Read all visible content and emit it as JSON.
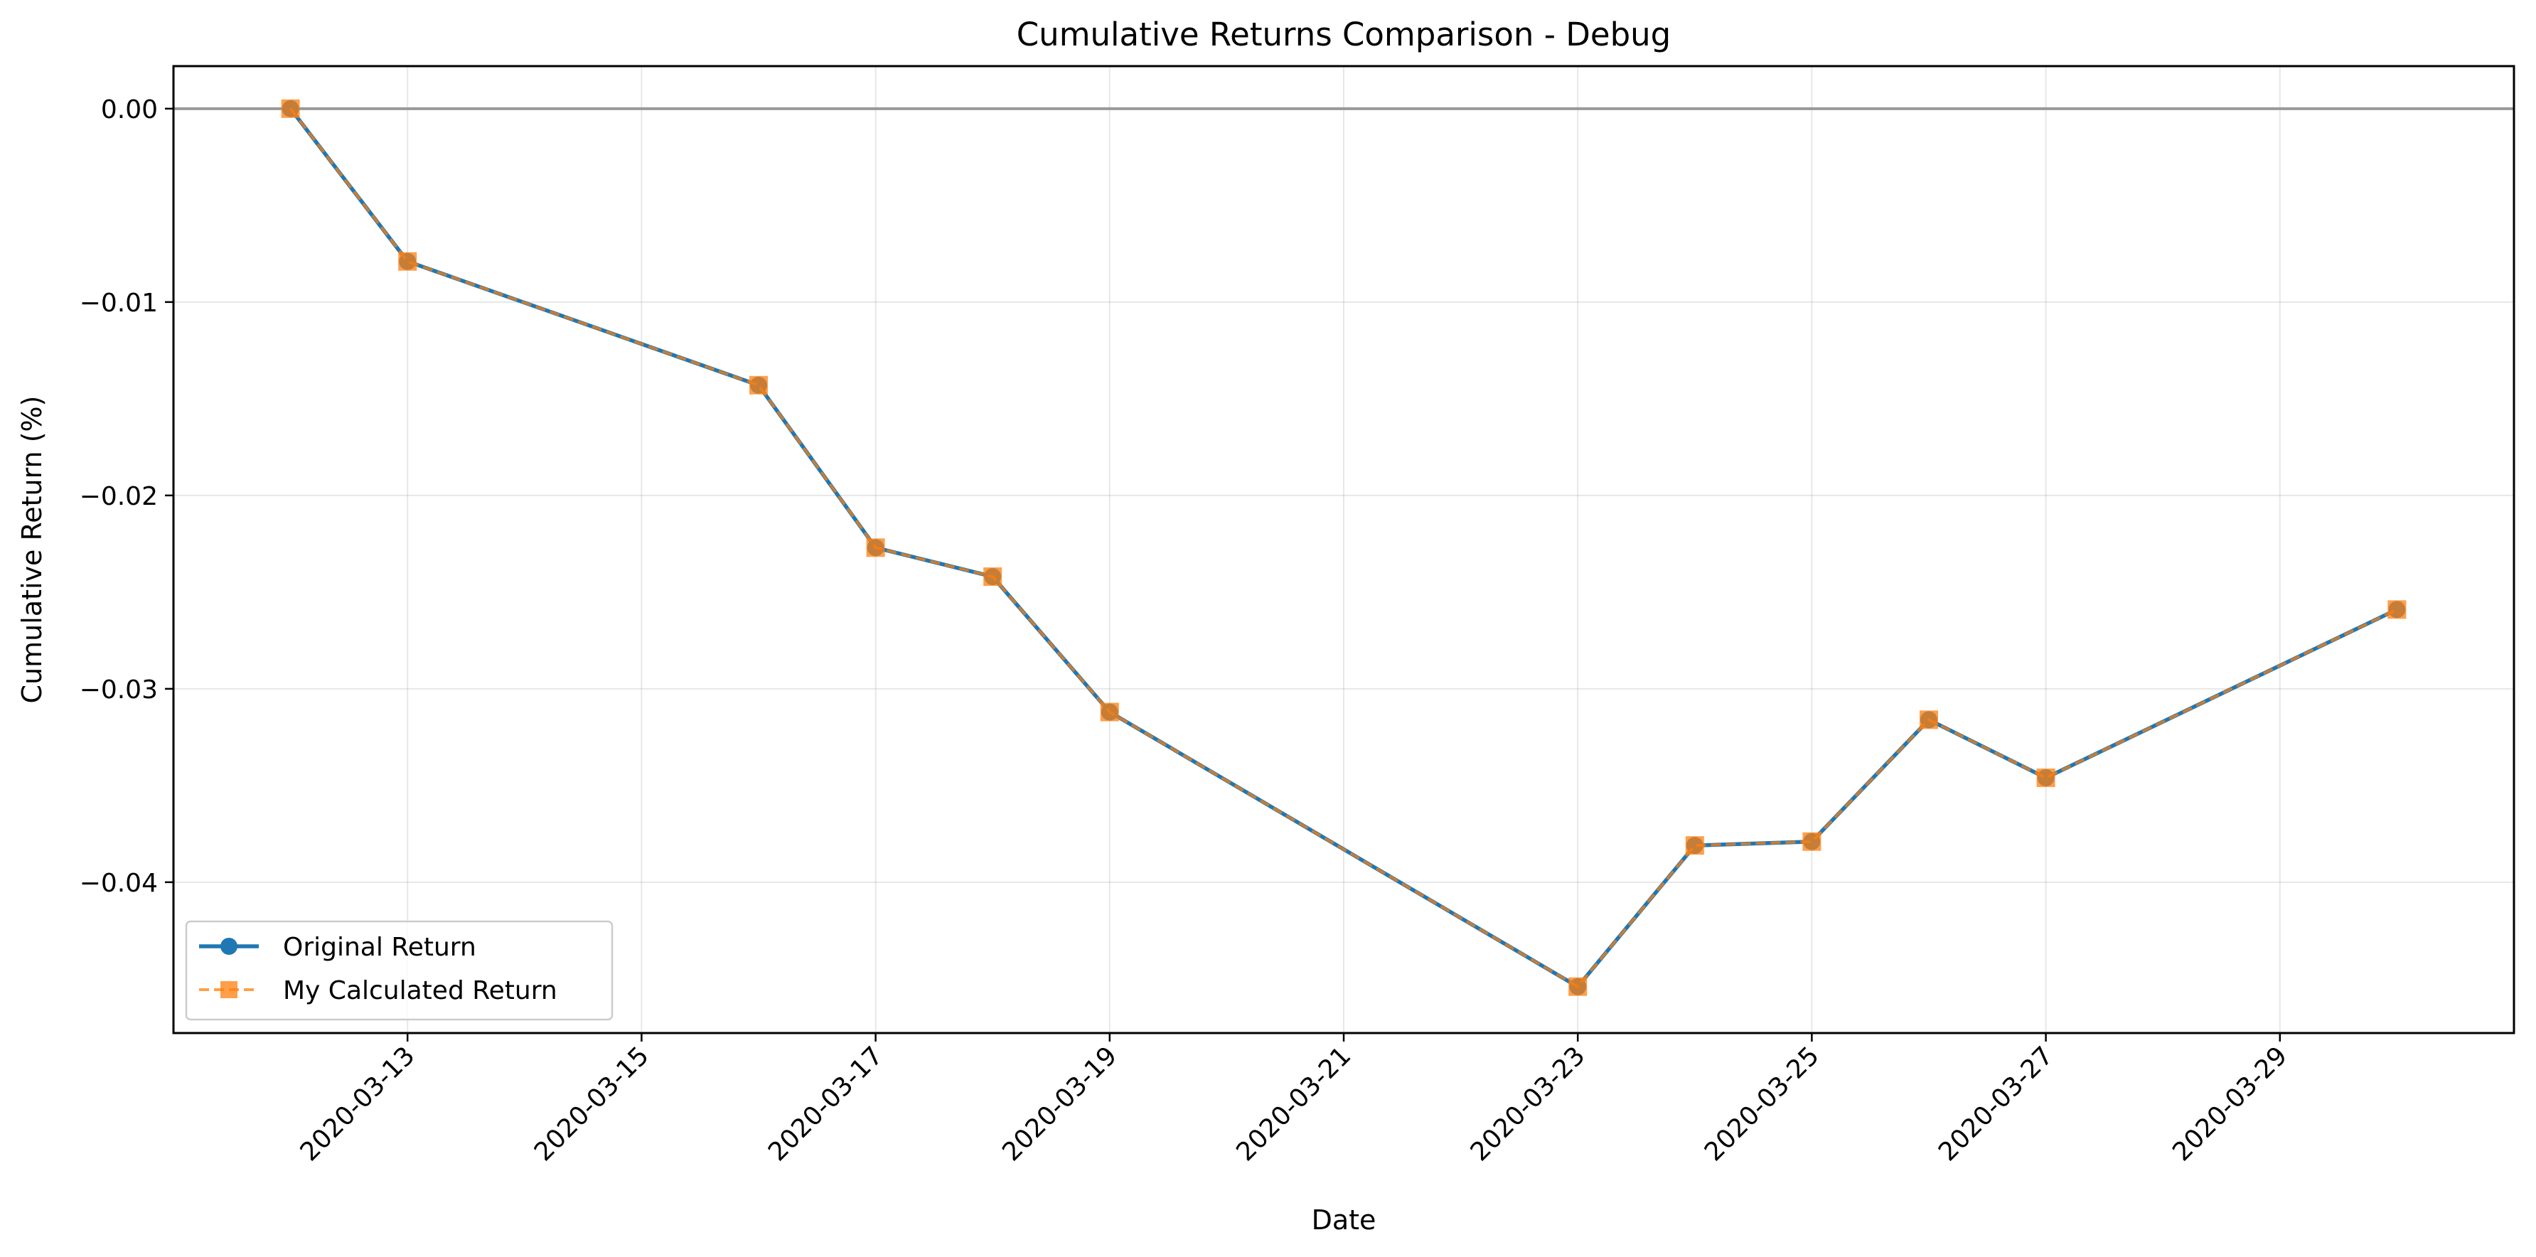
{
  "chart_data": {
    "type": "line",
    "title": "Cumulative Returns Comparison - Debug",
    "xlabel": "Date",
    "ylabel": "Cumulative Return (%)",
    "x_type": "date",
    "xlim": [
      "2020-03-11",
      "2020-03-31"
    ],
    "ylim": [
      -0.0478,
      0.0022
    ],
    "x_ticks": [
      "2020-03-13",
      "2020-03-15",
      "2020-03-17",
      "2020-03-19",
      "2020-03-21",
      "2020-03-23",
      "2020-03-25",
      "2020-03-27",
      "2020-03-29"
    ],
    "y_ticks": [
      {
        "value": 0.0,
        "label": "0.00"
      },
      {
        "value": -0.01,
        "label": "−0.01"
      },
      {
        "value": -0.02,
        "label": "−0.02"
      },
      {
        "value": -0.03,
        "label": "−0.03"
      },
      {
        "value": -0.04,
        "label": "−0.04"
      }
    ],
    "grid": true,
    "reference_line": {
      "y": 0.0,
      "color": "#999999"
    },
    "legend": {
      "position": "lower-left"
    },
    "x": [
      "2020-03-12",
      "2020-03-13",
      "2020-03-16",
      "2020-03-17",
      "2020-03-18",
      "2020-03-19",
      "2020-03-23",
      "2020-03-24",
      "2020-03-25",
      "2020-03-26",
      "2020-03-27",
      "2020-03-30"
    ],
    "series": [
      {
        "name": "Original Return",
        "color": "#1f77b4",
        "marker": "circle",
        "line_style": "solid",
        "values": [
          0.0,
          -0.0079,
          -0.0143,
          -0.0227,
          -0.0242,
          -0.0312,
          -0.0454,
          -0.0381,
          -0.0379,
          -0.0316,
          -0.0346,
          -0.0259
        ]
      },
      {
        "name": "My Calculated Return",
        "color": "#ff7f0e",
        "marker": "square",
        "line_style": "dashed",
        "values": [
          0.0,
          -0.0079,
          -0.0143,
          -0.0227,
          -0.0242,
          -0.0312,
          -0.0454,
          -0.0381,
          -0.0379,
          -0.0316,
          -0.0346,
          -0.0259
        ]
      }
    ]
  }
}
